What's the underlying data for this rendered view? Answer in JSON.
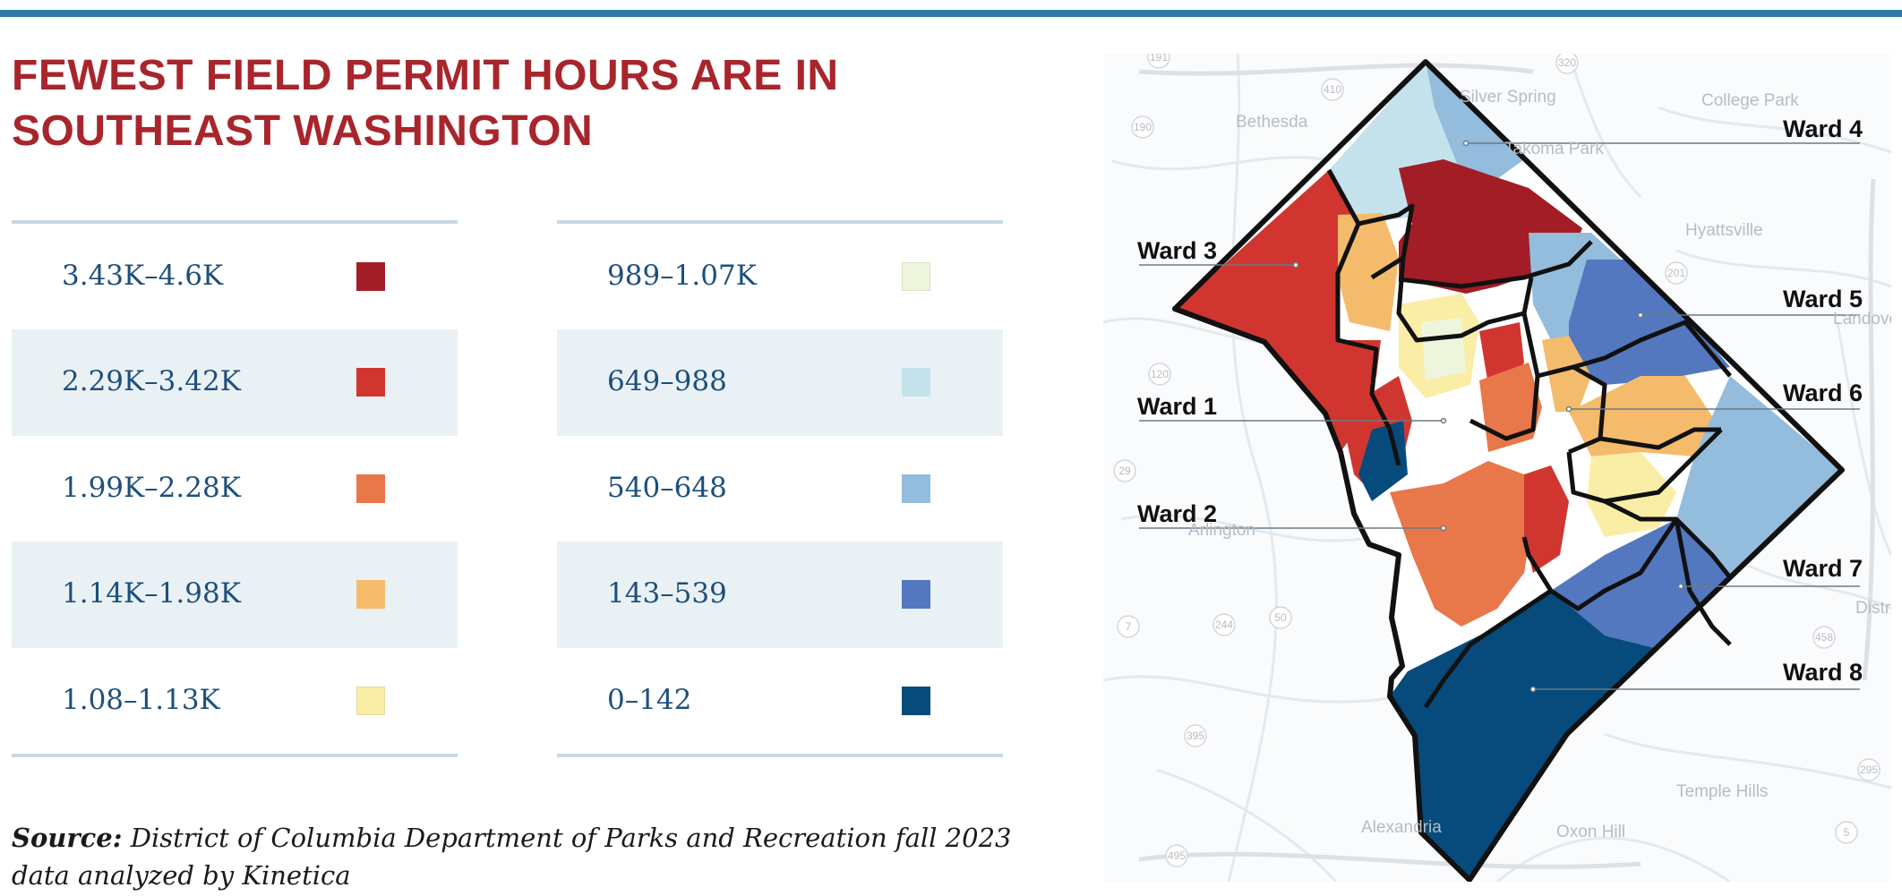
{
  "title": "FEWEST FIELD PERMIT HOURS ARE IN SOUTHEAST WASHINGTON",
  "legend": {
    "left": [
      {
        "label": "3.43K–4.6K",
        "color": "#a21d26"
      },
      {
        "label": "2.29K–3.42K",
        "color": "#d0362f"
      },
      {
        "label": "1.99K–2.28K",
        "color": "#e8774a"
      },
      {
        "label": "1.14K–1.98K",
        "color": "#f4bb6c"
      },
      {
        "label": "1.08–1.13K",
        "color": "#faeea6"
      }
    ],
    "right": [
      {
        "label": "989–1.07K",
        "color": "#eef5dd"
      },
      {
        "label": "649–988",
        "color": "#c4e2ec"
      },
      {
        "label": "540–648",
        "color": "#93bcdd"
      },
      {
        "label": "143–539",
        "color": "#5478bf"
      },
      {
        "label": "0–142",
        "color": "#064b7b"
      }
    ]
  },
  "source": {
    "prefix": "Source:",
    "text": "District of Columbia Department of Parks and Recreation fall 2023 data analyzed by Kinetica"
  },
  "map": {
    "wards": [
      "Ward 4",
      "Ward 3",
      "Ward 5",
      "Ward 1",
      "Ward 6",
      "Ward 2",
      "Ward 7",
      "Ward 8"
    ],
    "places": [
      "Silver Spring",
      "Bethesda",
      "Takoma Park",
      "College Park",
      "Hyattsville",
      "Landover",
      "Arlington",
      "District Heights",
      "Alexandria",
      "Oxon Hill",
      "Temple Hills"
    ],
    "road_markers": [
      "191",
      "190",
      "410",
      "320",
      "29",
      "120",
      "244",
      "50",
      "7",
      "395",
      "495",
      "295",
      "458",
      "5",
      "201"
    ]
  }
}
